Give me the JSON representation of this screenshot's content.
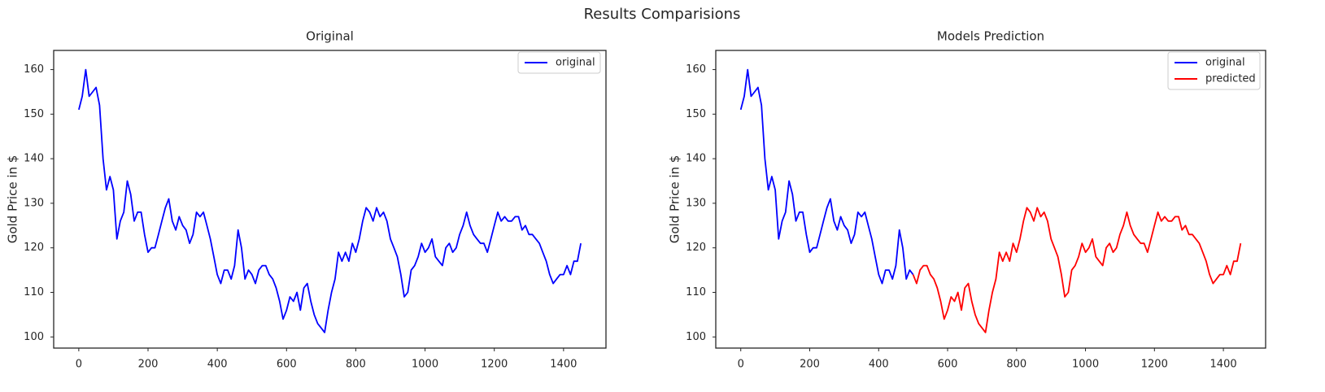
{
  "suptitle": "Results Comparisions",
  "chart_data": [
    {
      "type": "line",
      "title": "Original",
      "ylabel": "Gold Price in $",
      "x": [
        0,
        10,
        20,
        30,
        40,
        50,
        60,
        70,
        80,
        90,
        100,
        110,
        120,
        130,
        140,
        150,
        160,
        170,
        180,
        190,
        200,
        210,
        220,
        230,
        240,
        250,
        260,
        270,
        280,
        290,
        300,
        310,
        320,
        330,
        340,
        350,
        360,
        370,
        380,
        390,
        400,
        410,
        420,
        430,
        440,
        450,
        460,
        470,
        480,
        490,
        500,
        510,
        520,
        530,
        540,
        550,
        560,
        570,
        580,
        590,
        600,
        610,
        620,
        630,
        640,
        650,
        660,
        670,
        680,
        690,
        700,
        710,
        720,
        730,
        740,
        750,
        760,
        770,
        780,
        790,
        800,
        810,
        820,
        830,
        840,
        850,
        860,
        870,
        880,
        890,
        900,
        910,
        920,
        930,
        940,
        950,
        960,
        970,
        980,
        990,
        1000,
        1010,
        1020,
        1030,
        1040,
        1050,
        1060,
        1070,
        1080,
        1090,
        1100,
        1110,
        1120,
        1130,
        1140,
        1150,
        1160,
        1170,
        1180,
        1190,
        1200,
        1210,
        1220,
        1230,
        1240,
        1250,
        1260,
        1270,
        1280,
        1290,
        1300,
        1310,
        1320,
        1330,
        1340,
        1350,
        1360,
        1370,
        1380,
        1390,
        1400,
        1410,
        1420,
        1430,
        1440,
        1450
      ],
      "series": [
        {
          "name": "original",
          "color": "#0000ff",
          "values": [
            151,
            154,
            160,
            154,
            155,
            156,
            152,
            140,
            133,
            136,
            133,
            122,
            126,
            128,
            135,
            132,
            126,
            128,
            128,
            123,
            119,
            120,
            120,
            123,
            126,
            129,
            131,
            126,
            124,
            127,
            125,
            124,
            121,
            123,
            128,
            127,
            128,
            125,
            122,
            118,
            114,
            112,
            115,
            115,
            113,
            116,
            124,
            120,
            113,
            115,
            114,
            112,
            115,
            116,
            116,
            114,
            113,
            111,
            108,
            104,
            106,
            109,
            108,
            110,
            106,
            111,
            112,
            108,
            105,
            103,
            102,
            101,
            106,
            110,
            113,
            119,
            117,
            119,
            117,
            121,
            119,
            122,
            126,
            129,
            128,
            126,
            129,
            127,
            128,
            126,
            122,
            120,
            118,
            114,
            109,
            110,
            115,
            116,
            118,
            121,
            119,
            120,
            122,
            118,
            117,
            116,
            120,
            121,
            119,
            120,
            123,
            125,
            128,
            125,
            123,
            122,
            121,
            121,
            119,
            122,
            125,
            128,
            126,
            127,
            126,
            126,
            127,
            127,
            124,
            125,
            123,
            123,
            122,
            121,
            119,
            117,
            114,
            112,
            113,
            114,
            114,
            116,
            114,
            117,
            117,
            121
          ]
        }
      ],
      "xlim": [
        -72.5,
        1522.5
      ],
      "ylim": [
        97.5,
        164.3
      ],
      "xticks": [
        0,
        200,
        400,
        600,
        800,
        1000,
        1200,
        1400
      ],
      "yticks": [
        100,
        110,
        120,
        130,
        140,
        150,
        160
      ],
      "legend": "upper right",
      "grid": false
    },
    {
      "type": "line",
      "title": "Models Prediction",
      "ylabel": "Gold Price in $",
      "series": [
        {
          "name": "original",
          "color": "#0000ff",
          "x": [
            0,
            10,
            20,
            30,
            40,
            50,
            60,
            70,
            80,
            90,
            100,
            110,
            120,
            130,
            140,
            150,
            160,
            170,
            180,
            190,
            200,
            210,
            220,
            230,
            240,
            250,
            260,
            270,
            280,
            290,
            300,
            310,
            320,
            330,
            340,
            350,
            360,
            370,
            380,
            390,
            400,
            410,
            420,
            430,
            440,
            450,
            460,
            470,
            480,
            490,
            500
          ],
          "values": [
            151,
            154,
            160,
            154,
            155,
            156,
            152,
            140,
            133,
            136,
            133,
            122,
            126,
            128,
            135,
            132,
            126,
            128,
            128,
            123,
            119,
            120,
            120,
            123,
            126,
            129,
            131,
            126,
            124,
            127,
            125,
            124,
            121,
            123,
            128,
            127,
            128,
            125,
            122,
            118,
            114,
            112,
            115,
            115,
            113,
            116,
            124,
            120,
            113,
            115,
            114
          ]
        },
        {
          "name": "predicted",
          "color": "#ff0000",
          "x": [
            500,
            510,
            520,
            530,
            540,
            550,
            560,
            570,
            580,
            590,
            600,
            610,
            620,
            630,
            640,
            650,
            660,
            670,
            680,
            690,
            700,
            710,
            720,
            730,
            740,
            750,
            760,
            770,
            780,
            790,
            800,
            810,
            820,
            830,
            840,
            850,
            860,
            870,
            880,
            890,
            900,
            910,
            920,
            930,
            940,
            950,
            960,
            970,
            980,
            990,
            1000,
            1010,
            1020,
            1030,
            1040,
            1050,
            1060,
            1070,
            1080,
            1090,
            1100,
            1110,
            1120,
            1130,
            1140,
            1150,
            1160,
            1170,
            1180,
            1190,
            1200,
            1210,
            1220,
            1230,
            1240,
            1250,
            1260,
            1270,
            1280,
            1290,
            1300,
            1310,
            1320,
            1330,
            1340,
            1350,
            1360,
            1370,
            1380,
            1390,
            1400,
            1410,
            1420,
            1430,
            1440,
            1450
          ],
          "values": [
            114,
            112,
            115,
            116,
            116,
            114,
            113,
            111,
            108,
            104,
            106,
            109,
            108,
            110,
            106,
            111,
            112,
            108,
            105,
            103,
            102,
            101,
            106,
            110,
            113,
            119,
            117,
            119,
            117,
            121,
            119,
            122,
            126,
            129,
            128,
            126,
            129,
            127,
            128,
            126,
            122,
            120,
            118,
            114,
            109,
            110,
            115,
            116,
            118,
            121,
            119,
            120,
            122,
            118,
            117,
            116,
            120,
            121,
            119,
            120,
            123,
            125,
            128,
            125,
            123,
            122,
            121,
            121,
            119,
            122,
            125,
            128,
            126,
            127,
            126,
            126,
            127,
            127,
            124,
            125,
            123,
            123,
            122,
            121,
            119,
            117,
            114,
            112,
            113,
            114,
            114,
            116,
            114,
            117,
            117,
            121
          ]
        }
      ],
      "xlim": [
        -72.5,
        1522.5
      ],
      "ylim": [
        97.5,
        164.3
      ],
      "xticks": [
        0,
        200,
        400,
        600,
        800,
        1000,
        1200,
        1400
      ],
      "yticks": [
        100,
        110,
        120,
        130,
        140,
        150,
        160
      ],
      "legend": "upper right",
      "grid": false
    }
  ]
}
